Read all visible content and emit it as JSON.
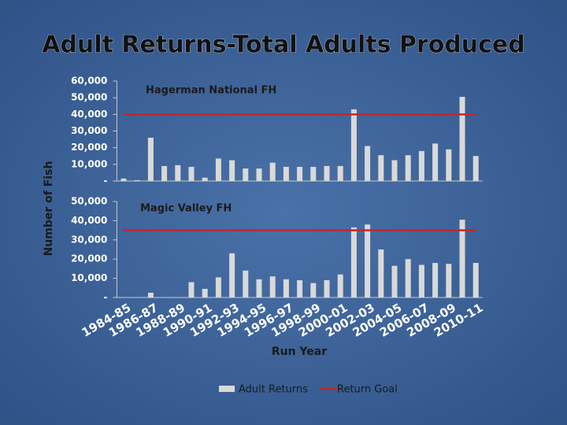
{
  "chart_data": {
    "type": "bar",
    "title": "Adult Returns-Total Adults Produced",
    "y_label": "Number of Fish",
    "x_label": "Run Year",
    "categories": [
      "1984-85",
      null,
      "1986-87",
      null,
      "1988-89",
      null,
      "1990-91",
      null,
      "1992-93",
      null,
      "1994-95",
      null,
      "1996-97",
      null,
      "1998-99",
      null,
      "2000-01",
      null,
      "2002-03",
      null,
      "2004-05",
      null,
      "2006-07",
      null,
      "2008-09",
      null,
      "2010-11"
    ],
    "series": [
      {
        "name": "Adult Returns",
        "color": "#d9d9d9"
      },
      {
        "name": "Return Goal",
        "color": "#c0272d"
      }
    ],
    "panels": [
      {
        "subtitle": "Hagerman National FH",
        "values": [
          1500,
          500,
          26000,
          9000,
          9500,
          8500,
          2000,
          13500,
          12500,
          7500,
          7500,
          11000,
          8500,
          8500,
          8500,
          9000,
          9000,
          43000,
          21000,
          15500,
          12500,
          15500,
          18000,
          22500,
          19000,
          50500,
          15000
        ],
        "goal": 40000,
        "ylim": [
          0,
          60000
        ],
        "yticks": [
          {
            "value": 0,
            "label": "-"
          },
          {
            "value": 10000,
            "label": "10,000"
          },
          {
            "value": 20000,
            "label": "20,000"
          },
          {
            "value": 30000,
            "label": "30,000"
          },
          {
            "value": 40000,
            "label": "40,000"
          },
          {
            "value": 50000,
            "label": "50,000"
          },
          {
            "value": 60000,
            "label": "60,000"
          }
        ]
      },
      {
        "subtitle": "Magic Valley FH",
        "values": [
          0,
          0,
          2500,
          0,
          0,
          8000,
          4500,
          10500,
          23000,
          14000,
          9500,
          11000,
          9500,
          9000,
          7500,
          9000,
          12000,
          36500,
          38000,
          25000,
          16500,
          20000,
          17000,
          18000,
          17500,
          40500,
          18000
        ],
        "goal": 35000,
        "ylim": [
          0,
          50000
        ],
        "yticks": [
          {
            "value": 0,
            "label": "-"
          },
          {
            "value": 10000,
            "label": "10,000"
          },
          {
            "value": 20000,
            "label": "20,000"
          },
          {
            "value": 30000,
            "label": "30,000"
          },
          {
            "value": 40000,
            "label": "40,000"
          },
          {
            "value": 50000,
            "label": "50,000"
          }
        ]
      }
    ]
  }
}
